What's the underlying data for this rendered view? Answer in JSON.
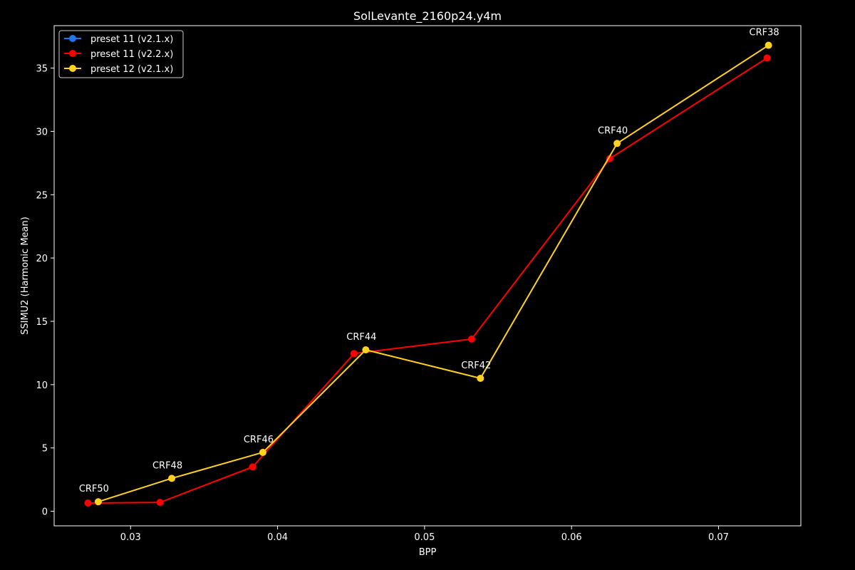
{
  "chart_data": {
    "type": "line",
    "title": "SolLevante_2160p24.y4m",
    "xlabel": "BPP",
    "ylabel": "SSIMU2 (Harmonic Mean)",
    "xlim": [
      0.0248,
      0.0756
    ],
    "ylim": [
      -1.15,
      38.35
    ],
    "xticks": [
      0.03,
      0.04,
      0.05,
      0.06,
      0.07
    ],
    "xtick_labels": [
      "0.03",
      "0.04",
      "0.05",
      "0.06",
      "0.07"
    ],
    "yticks": [
      0,
      5,
      10,
      15,
      20,
      25,
      30,
      35
    ],
    "ytick_labels": [
      "0",
      "5",
      "10",
      "15",
      "20",
      "25",
      "30",
      "35"
    ],
    "grid": false,
    "legend_position": "top-left",
    "background": "#000000",
    "series": [
      {
        "name": "preset 11 (v2.1.x)",
        "color": "#1f77e8",
        "x": [],
        "y": []
      },
      {
        "name": "preset 11 (v2.2.x)",
        "color": "#ff0000",
        "x": [
          0.0271,
          0.032,
          0.0383,
          0.0452,
          0.0532,
          0.0626,
          0.0733
        ],
        "y": [
          0.65,
          0.7,
          3.5,
          12.45,
          13.6,
          27.85,
          35.8
        ]
      },
      {
        "name": "preset 12 (v2.1.x)",
        "color": "#ffd21f",
        "x": [
          0.0278,
          0.0328,
          0.039,
          0.046,
          0.0538,
          0.0631,
          0.0734
        ],
        "y": [
          0.75,
          2.6,
          4.65,
          12.75,
          10.5,
          29.05,
          36.8
        ]
      }
    ],
    "annotations": [
      {
        "text": "CRF50",
        "x": 0.0278,
        "y": 0.75
      },
      {
        "text": "CRF48",
        "x": 0.0328,
        "y": 2.6
      },
      {
        "text": "CRF46",
        "x": 0.039,
        "y": 4.65
      },
      {
        "text": "CRF44",
        "x": 0.046,
        "y": 12.75
      },
      {
        "text": "CRF42",
        "x": 0.0538,
        "y": 10.5
      },
      {
        "text": "CRF40",
        "x": 0.0631,
        "y": 29.05
      },
      {
        "text": "CRF38",
        "x": 0.0734,
        "y": 36.8
      }
    ]
  }
}
